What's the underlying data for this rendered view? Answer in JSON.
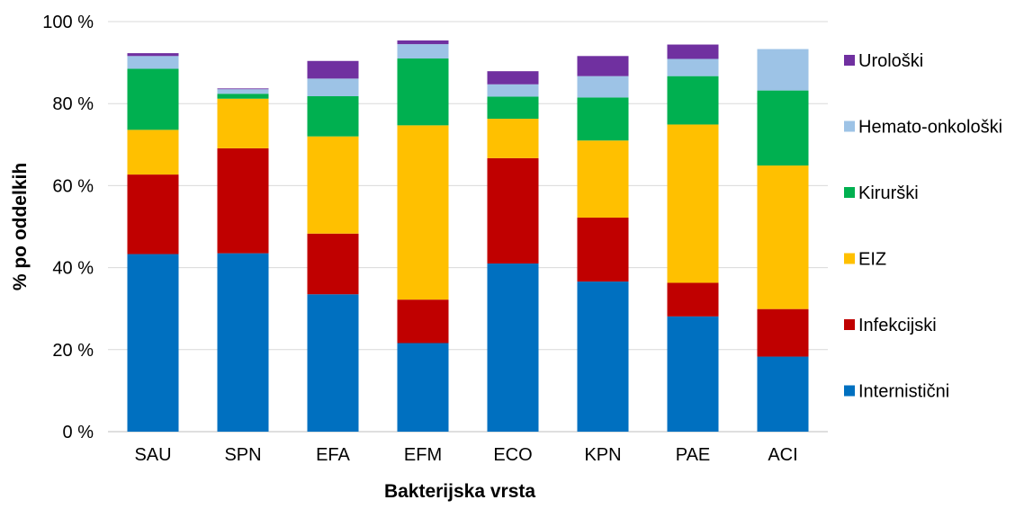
{
  "chart_data": {
    "type": "bar",
    "stacked": true,
    "categories": [
      "SAU",
      "SPN",
      "EFA",
      "EFM",
      "ECO",
      "KPN",
      "PAE",
      "ACI"
    ],
    "series": [
      {
        "name": "Internistični",
        "color": "#0070C0",
        "values": [
          43.3,
          43.5,
          33.5,
          21.6,
          41.0,
          36.6,
          28.1,
          18.3
        ]
      },
      {
        "name": "Infekcijski",
        "color": "#C00000",
        "values": [
          19.4,
          25.6,
          14.8,
          10.6,
          25.7,
          15.6,
          8.2,
          11.6
        ]
      },
      {
        "name": "EIZ",
        "color": "#FFC000",
        "values": [
          10.9,
          12.1,
          23.7,
          42.5,
          9.6,
          18.8,
          38.6,
          35.0
        ]
      },
      {
        "name": "Kirurški",
        "color": "#00B050",
        "values": [
          14.9,
          1.2,
          9.8,
          16.3,
          5.4,
          10.5,
          11.8,
          18.3
        ]
      },
      {
        "name": "Hemato-onkološki",
        "color": "#9DC3E6",
        "values": [
          3.1,
          1.1,
          4.3,
          3.5,
          3.0,
          5.2,
          4.2,
          10.1
        ]
      },
      {
        "name": "Urološki",
        "color": "#7030A0",
        "values": [
          0.7,
          0.2,
          4.3,
          0.9,
          3.2,
          4.9,
          3.5,
          0.0
        ]
      }
    ],
    "y_ticks": [
      "0 %",
      "20 %",
      "40 %",
      "60 %",
      "80 %",
      "100 %"
    ],
    "ylim": [
      0,
      100
    ],
    "xlabel": "Bakterijska vrsta",
    "ylabel": "% po oddelkih",
    "grid": true,
    "legend_position": "right"
  }
}
